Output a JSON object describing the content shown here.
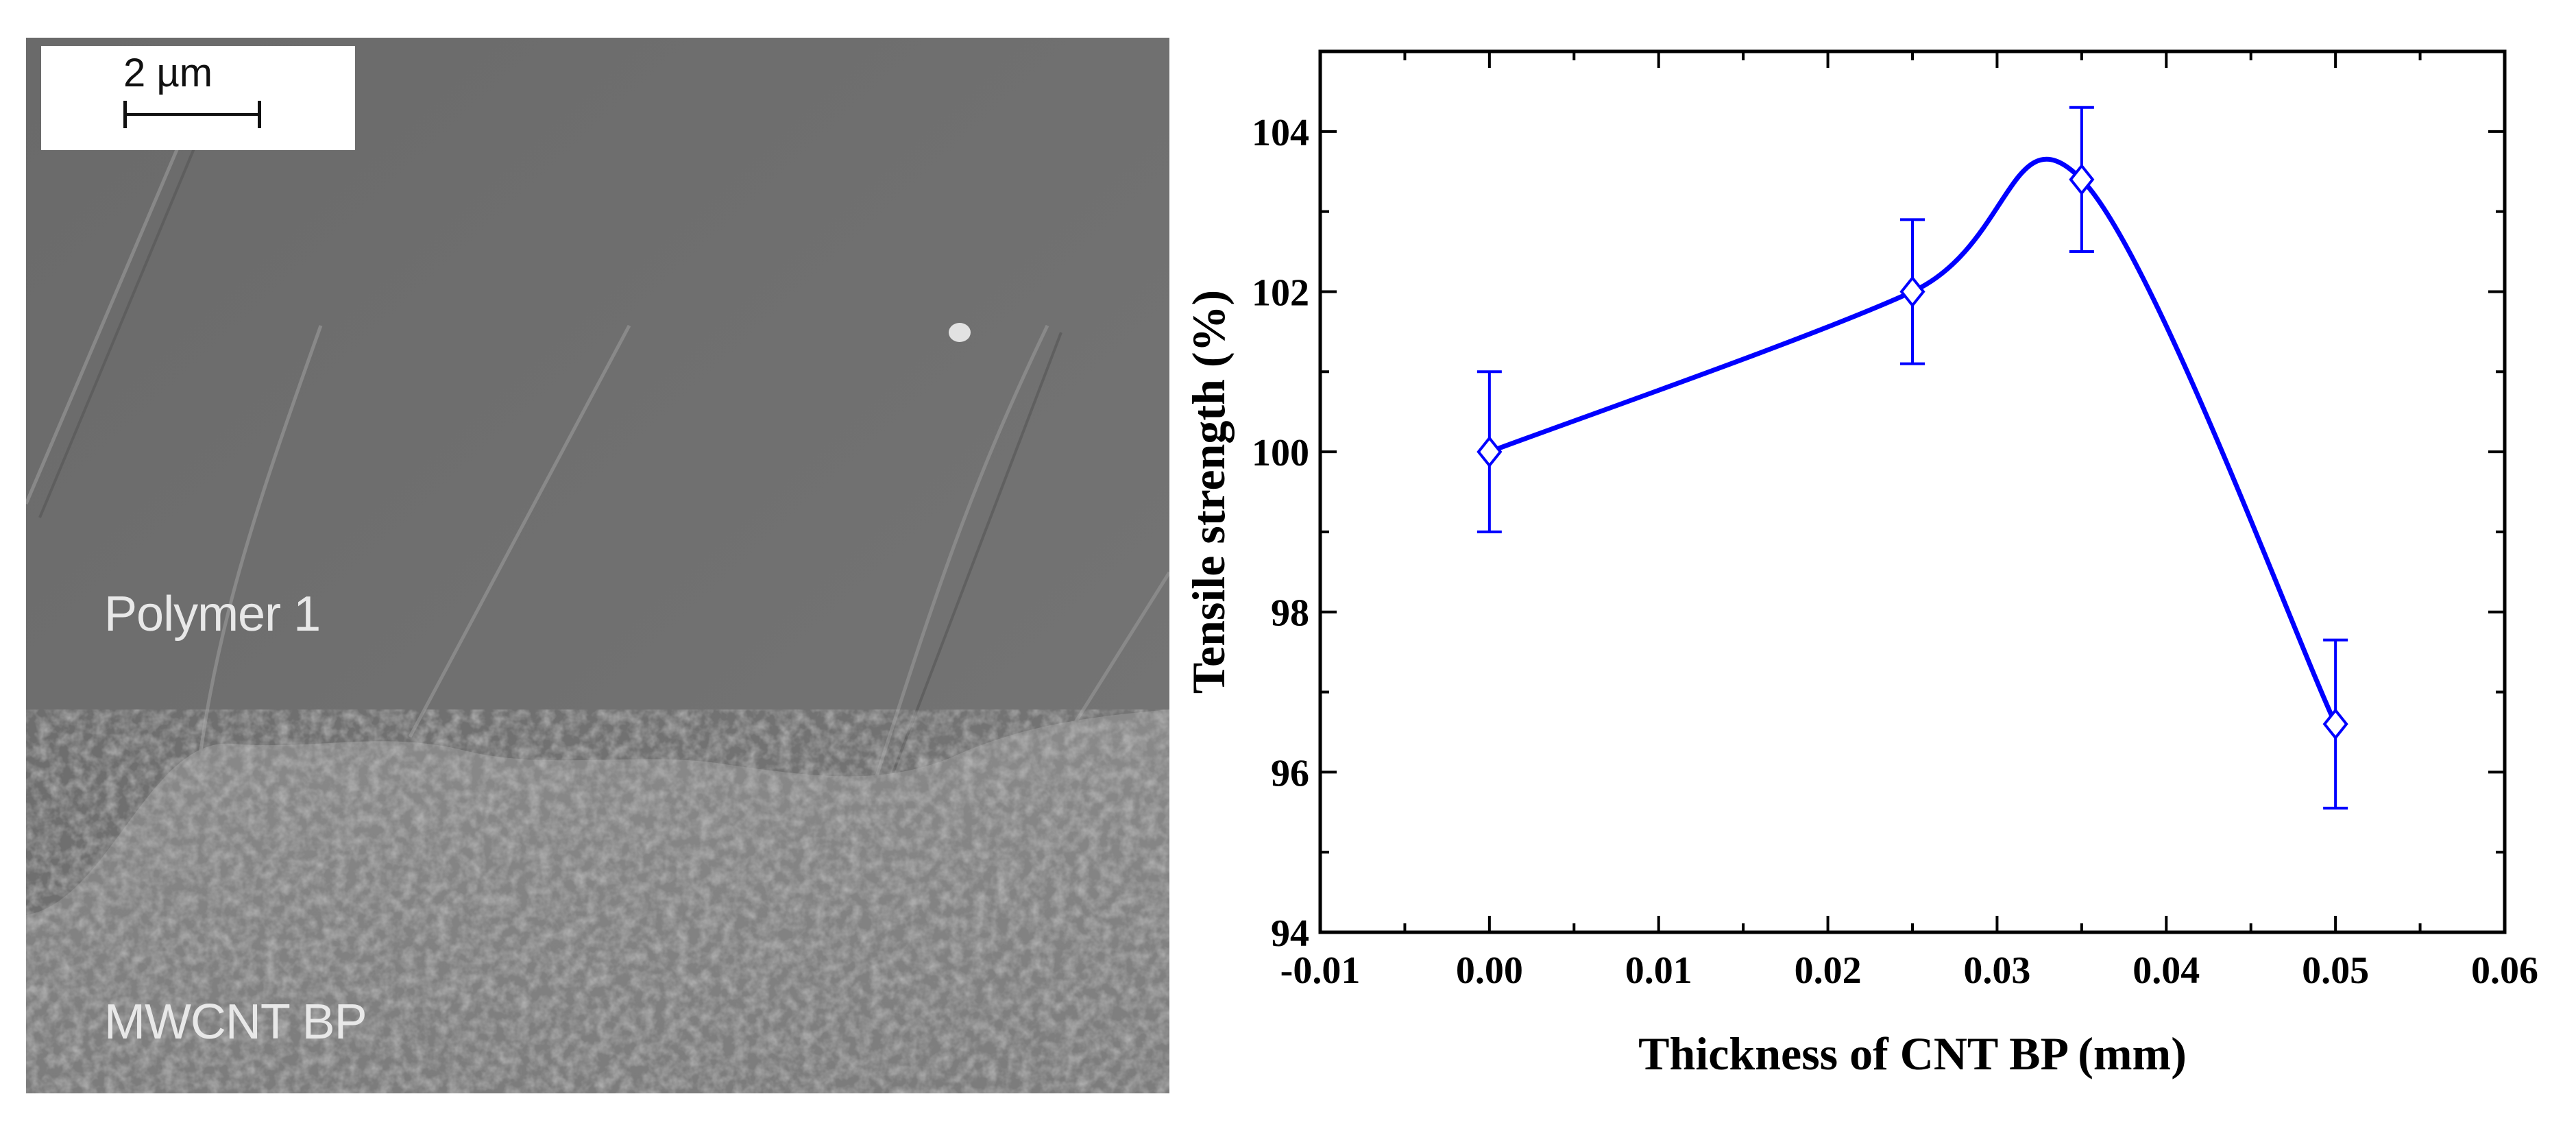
{
  "sem_image": {
    "scale_bar_label": "2 µm",
    "region_labels": [
      "Polymer 1",
      "MWCNT BP"
    ]
  },
  "chart_data": {
    "type": "line",
    "title": "",
    "xlabel": "Thickness of CNT BP (mm)",
    "ylabel": "Tensile strength (%)",
    "xlim": [
      -0.01,
      0.06
    ],
    "ylim": [
      94,
      105
    ],
    "x_ticks": [
      -0.01,
      0.0,
      0.01,
      0.02,
      0.03,
      0.04,
      0.05,
      0.06
    ],
    "x_tick_labels": [
      "-0.01",
      "0.00",
      "0.01",
      "0.02",
      "0.03",
      "0.04",
      "0.05",
      "0.06"
    ],
    "y_ticks": [
      94,
      96,
      98,
      100,
      102,
      104
    ],
    "y_tick_labels": [
      "94",
      "96",
      "98",
      "100",
      "102",
      "104"
    ],
    "grid": false,
    "series": [
      {
        "marker": "open-diamond",
        "color": "#0000ff",
        "smooth": true,
        "points": [
          {
            "x": 0.0,
            "y": 100.0,
            "err": 1.0
          },
          {
            "x": 0.025,
            "y": 102.0,
            "err": 0.9
          },
          {
            "x": 0.035,
            "y": 103.4,
            "err": 0.9
          },
          {
            "x": 0.05,
            "y": 96.6,
            "err": 1.05
          }
        ]
      }
    ]
  }
}
